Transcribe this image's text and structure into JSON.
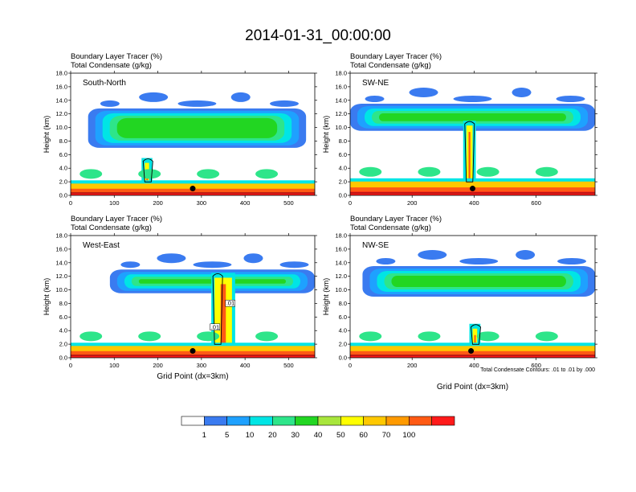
{
  "figure": {
    "title": "2014-01-31_00:00:00",
    "panel_header_line1": "Boundary Layer Tracer   (%)",
    "panel_header_line2": "Total Condensate   (g/kg)",
    "ylabel": "Height (km)",
    "xlabel": "Grid Point (dx=3km)",
    "contour_note": "Total Condensate Contours: .01 to .01 by .000",
    "colorbar": {
      "labels": [
        "1",
        "5",
        "10",
        "20",
        "30",
        "40",
        "50",
        "60",
        "70",
        "100"
      ],
      "colors": [
        "#ffffff",
        "#3a7bf0",
        "#1ea1ff",
        "#00e5e5",
        "#2ee58a",
        "#22d622",
        "#a8e63c",
        "#ffff00",
        "#ffc800",
        "#ff9a00",
        "#ff5a14",
        "#ff1a1a"
      ]
    }
  },
  "chart_data": [
    {
      "type": "heatmap",
      "panel_label": "South-North",
      "title": "Boundary Layer Tracer (%) / Total Condensate (g/kg)",
      "ylabel": "Height (km)",
      "xlabel": "",
      "xlim": [
        0,
        560
      ],
      "ylim": [
        0,
        18
      ],
      "xticks": [
        "0",
        "100",
        "200",
        "300",
        "400",
        "500"
      ],
      "yticks": [
        "0.0",
        "2.0",
        "4.0",
        "6.0",
        "8.0",
        "10.0",
        "12.0",
        "14.0",
        "16.0",
        "18.0"
      ],
      "marker": {
        "x": 280,
        "y": 1.0
      },
      "bands": [
        {
          "x": [
            40,
            540
          ],
          "y": [
            7.0,
            12.8
          ],
          "level": "mid"
        },
        {
          "x": [
            0,
            560
          ],
          "y": [
            0,
            1.5
          ],
          "level": "surface"
        },
        {
          "x": [
            170,
            180
          ],
          "y": [
            1.5,
            5.5
          ],
          "level": "column"
        }
      ]
    },
    {
      "type": "heatmap",
      "panel_label": "SW-NE",
      "title": "Boundary Layer Tracer (%) / Total Condensate (g/kg)",
      "ylabel": "Height (km)",
      "xlabel": "",
      "xlim": [
        0,
        790
      ],
      "ylim": [
        0,
        18
      ],
      "xticks": [
        "0",
        "200",
        "400",
        "600"
      ],
      "yticks": [
        "0.0",
        "2.0",
        "4.0",
        "6.0",
        "8.0",
        "10.0",
        "12.0",
        "14.0",
        "16.0",
        "18.0"
      ],
      "marker": {
        "x": 395,
        "y": 1.0
      },
      "bands": [
        {
          "x": [
            0,
            790
          ],
          "y": [
            9.5,
            13.5
          ],
          "level": "mid"
        },
        {
          "x": [
            0,
            790
          ],
          "y": [
            0,
            1.8
          ],
          "level": "surface"
        },
        {
          "x": [
            375,
            395
          ],
          "y": [
            1.5,
            11.0
          ],
          "level": "column"
        }
      ]
    },
    {
      "type": "heatmap",
      "panel_label": "West-East",
      "title": "Boundary Layer Tracer (%) / Total Condensate (g/kg)",
      "ylabel": "Height (km)",
      "xlabel": "Grid Point (dx=3km)",
      "xlim": [
        0,
        560
      ],
      "ylim": [
        0,
        18
      ],
      "xticks": [
        "0",
        "100",
        "200",
        "300",
        "400",
        "500"
      ],
      "yticks": [
        "0.0",
        "2.0",
        "4.0",
        "6.0",
        "8.0",
        "10.0",
        "12.0",
        "14.0",
        "16.0",
        "18.0"
      ],
      "marker": {
        "x": 280,
        "y": 1.0
      },
      "contour_labels": [
        ".01",
        ".01"
      ],
      "bands": [
        {
          "x": [
            90,
            560
          ],
          "y": [
            9.5,
            13.0
          ],
          "level": "mid"
        },
        {
          "x": [
            0,
            560
          ],
          "y": [
            0,
            1.5
          ],
          "level": "surface"
        },
        {
          "x": [
            330,
            370
          ],
          "y": [
            1.5,
            12.5
          ],
          "level": "column"
        }
      ]
    },
    {
      "type": "heatmap",
      "panel_label": "NW-SE",
      "title": "Boundary Layer Tracer (%) / Total Condensate (g/kg)",
      "ylabel": "Height (km)",
      "xlabel": "Grid Point (dx=3km)",
      "xlim": [
        0,
        790
      ],
      "ylim": [
        0,
        18
      ],
      "xticks": [
        "0",
        "200",
        "400",
        "600"
      ],
      "yticks": [
        "0.0",
        "2.0",
        "4.0",
        "6.0",
        "8.0",
        "10.0",
        "12.0",
        "14.0",
        "16.0",
        "18.0"
      ],
      "marker": {
        "x": 390,
        "y": 1.0
      },
      "bands": [
        {
          "x": [
            40,
            790
          ],
          "y": [
            9.0,
            13.5
          ],
          "level": "mid"
        },
        {
          "x": [
            0,
            790
          ],
          "y": [
            0,
            1.5
          ],
          "level": "surface"
        },
        {
          "x": [
            395,
            410
          ],
          "y": [
            1.5,
            5.0
          ],
          "level": "column"
        }
      ]
    }
  ]
}
